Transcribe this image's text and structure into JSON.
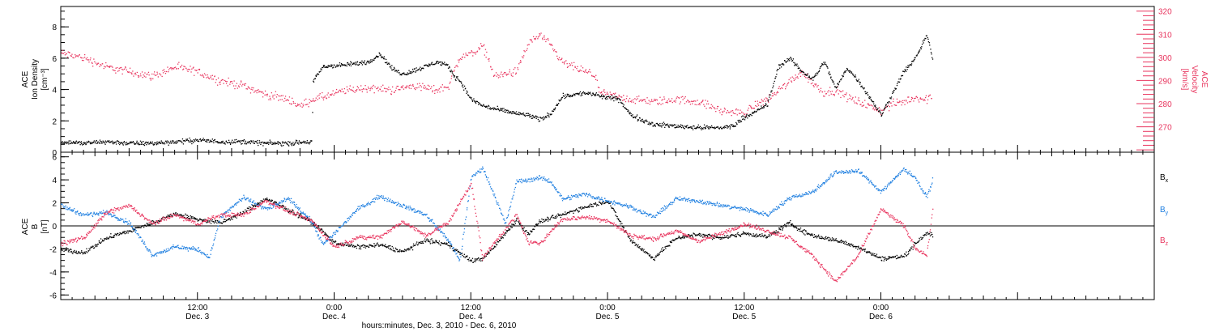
{
  "xaxis": {
    "title": "hours:minutes, Dec.  3, 2010 - Dec.  6, 2010",
    "range_hours": [
      0,
      96
    ],
    "ticks": [
      {
        "hour": 12,
        "time": "12:00",
        "date": "Dec. 3"
      },
      {
        "hour": 24,
        "time": "0:00",
        "date": "Dec. 4"
      },
      {
        "hour": 36,
        "time": "12:00",
        "date": "Dec. 4"
      },
      {
        "hour": 48,
        "time": "0:00",
        "date": "Dec. 5"
      },
      {
        "hour": 60,
        "time": "12:00",
        "date": "Dec. 5"
      },
      {
        "hour": 72,
        "time": "0:00",
        "date": "Dec. 6"
      }
    ]
  },
  "colors": {
    "black": "#000000",
    "pink": "#e8365f",
    "blue": "#1f7fe0"
  },
  "top_panel": {
    "left_label": [
      "ACE",
      "Ion Density"
    ],
    "left_unit": "[cm⁻³]",
    "right_label": [
      "ACE",
      "Velocity"
    ],
    "right_unit": "[km/s]",
    "left_ticks": [
      "0",
      "2",
      "4",
      "6",
      "8"
    ],
    "right_ticks": [
      "270",
      "280",
      "290",
      "300",
      "310",
      "320"
    ]
  },
  "bottom_panel": {
    "left_label": "ACE",
    "left_sublabel": "B",
    "left_unit": "[nT]",
    "left_ticks": [
      "-6",
      "-4",
      "-2",
      "0",
      "2",
      "4",
      "6"
    ],
    "legend": [
      {
        "label": "B",
        "sub": "x",
        "color": "#000000"
      },
      {
        "label": "B",
        "sub": "y",
        "color": "#1f7fe0"
      },
      {
        "label": "B",
        "sub": "z",
        "color": "#e8365f"
      }
    ]
  },
  "chart_data": [
    {
      "type": "scatter",
      "x_unit": "hours since Dec. 3 00:00",
      "xlim": [
        0,
        96
      ],
      "series": [
        {
          "name": "Ion Density",
          "axis": "left",
          "color": "#000000",
          "ylim": [
            0,
            9.3
          ],
          "points": [
            [
              0,
              0.7
            ],
            [
              2,
              0.6
            ],
            [
              4,
              0.7
            ],
            [
              6,
              0.6
            ],
            [
              8,
              0.6
            ],
            [
              10,
              0.7
            ],
            [
              12,
              0.8
            ],
            [
              14,
              0.7
            ],
            [
              16,
              0.7
            ],
            [
              18,
              0.6
            ],
            [
              20,
              0.6
            ],
            [
              22,
              0.7
            ],
            [
              22.1,
              4.5
            ],
            [
              23,
              5.5
            ],
            [
              25,
              5.6
            ],
            [
              27,
              5.8
            ],
            [
              28,
              6.3
            ],
            [
              29,
              5.4
            ],
            [
              30,
              5.0
            ],
            [
              32,
              5.5
            ],
            [
              33,
              5.8
            ],
            [
              34,
              5.5
            ],
            [
              34.5,
              4.9
            ],
            [
              35,
              4.6
            ],
            [
              36,
              3.4
            ],
            [
              37,
              3.0
            ],
            [
              38,
              2.8
            ],
            [
              40,
              2.5
            ],
            [
              41,
              2.4
            ],
            [
              42,
              2.1
            ],
            [
              43,
              2.5
            ],
            [
              44,
              3.6
            ],
            [
              46,
              3.8
            ],
            [
              47,
              3.7
            ],
            [
              47.2,
              3.6
            ],
            [
              49,
              3.4
            ],
            [
              50,
              2.4
            ],
            [
              52,
              1.8
            ],
            [
              54,
              1.7
            ],
            [
              56,
              1.6
            ],
            [
              58,
              1.6
            ],
            [
              59,
              1.7
            ],
            [
              60,
              2.3
            ],
            [
              61,
              2.6
            ],
            [
              62,
              3.1
            ],
            [
              63,
              5.5
            ],
            [
              64,
              6.0
            ],
            [
              65,
              5.2
            ],
            [
              66,
              4.7
            ],
            [
              67,
              5.8
            ],
            [
              68,
              4.1
            ],
            [
              69,
              5.4
            ],
            [
              70,
              4.6
            ],
            [
              71,
              3.5
            ],
            [
              72,
              2.4
            ],
            [
              73,
              3.8
            ],
            [
              74,
              5.2
            ],
            [
              75,
              6.0
            ],
            [
              76,
              7.5
            ],
            [
              76.5,
              6.0
            ]
          ]
        },
        {
          "name": "Velocity",
          "axis": "right",
          "color": "#e8365f",
          "ylim": [
            259,
            322
          ],
          "points": [
            [
              0,
              302
            ],
            [
              2,
              300
            ],
            [
              4,
              296
            ],
            [
              6,
              294
            ],
            [
              8,
              292
            ],
            [
              10,
              296
            ],
            [
              12,
              294
            ],
            [
              14,
              290
            ],
            [
              16,
              288
            ],
            [
              18,
              284
            ],
            [
              20,
              282
            ],
            [
              21,
              279
            ],
            [
              22,
              282
            ],
            [
              23,
              283
            ],
            [
              25,
              286
            ],
            [
              27,
              287
            ],
            [
              29,
              286
            ],
            [
              31,
              288
            ],
            [
              33,
              286
            ],
            [
              34,
              288
            ],
            [
              35,
              300
            ],
            [
              36,
              302
            ],
            [
              37,
              305
            ],
            [
              37.5,
              300
            ],
            [
              38,
              292
            ],
            [
              40,
              294
            ],
            [
              41,
              306
            ],
            [
              42,
              310
            ],
            [
              43,
              305
            ],
            [
              44,
              298
            ],
            [
              46,
              294
            ],
            [
              47,
              292
            ],
            [
              47.2,
              285
            ],
            [
              48,
              284
            ],
            [
              50,
              282
            ],
            [
              52,
              281
            ],
            [
              54,
              282
            ],
            [
              56,
              281
            ],
            [
              57,
              279
            ],
            [
              58,
              277
            ],
            [
              60,
              276
            ],
            [
              61,
              280
            ],
            [
              62,
              282
            ],
            [
              63,
              286
            ],
            [
              64,
              290
            ],
            [
              65,
              294
            ],
            [
              66,
              289
            ],
            [
              67,
              285
            ],
            [
              68,
              286
            ],
            [
              69,
              283
            ],
            [
              70,
              281
            ],
            [
              71,
              279
            ],
            [
              72,
              277
            ],
            [
              73,
              280
            ],
            [
              74,
              281
            ],
            [
              75,
              283
            ],
            [
              76,
              282
            ],
            [
              76.5,
              283
            ]
          ]
        }
      ]
    },
    {
      "type": "scatter",
      "x_unit": "hours since Dec. 3 00:00",
      "xlim": [
        0,
        96
      ],
      "ylim": [
        -6.4,
        6.4
      ],
      "ylabel": "B [nT]",
      "series": [
        {
          "name": "Bx",
          "color": "#000000",
          "points": [
            [
              0,
              -2
            ],
            [
              2,
              -2.3
            ],
            [
              4,
              -1
            ],
            [
              6,
              -0.4
            ],
            [
              8,
              0.3
            ],
            [
              10,
              1.1
            ],
            [
              12,
              0.6
            ],
            [
              14,
              0.3
            ],
            [
              16,
              1.2
            ],
            [
              18,
              2.4
            ],
            [
              20,
              1.4
            ],
            [
              22,
              0.4
            ],
            [
              24,
              -1.4
            ],
            [
              26,
              -1.8
            ],
            [
              28,
              -1.6
            ],
            [
              30,
              -2.2
            ],
            [
              32,
              -1.2
            ],
            [
              34,
              -1.6
            ],
            [
              36,
              -3.0
            ],
            [
              37,
              -2.8
            ],
            [
              38,
              -1.8
            ],
            [
              40,
              0.6
            ],
            [
              41,
              -0.7
            ],
            [
              42,
              0.4
            ],
            [
              44,
              1.0
            ],
            [
              46,
              1.7
            ],
            [
              48,
              2.2
            ],
            [
              50,
              -1.2
            ],
            [
              52,
              -2.8
            ],
            [
              54,
              -1.0
            ],
            [
              56,
              -0.7
            ],
            [
              58,
              -1.0
            ],
            [
              60,
              -0.6
            ],
            [
              62,
              -0.9
            ],
            [
              64,
              0.3
            ],
            [
              65,
              -0.4
            ],
            [
              66,
              -0.8
            ],
            [
              68,
              -1.2
            ],
            [
              70,
              -1.8
            ],
            [
              72,
              -2.8
            ],
            [
              74,
              -2.6
            ],
            [
              75,
              -1.5
            ],
            [
              76,
              -0.5
            ],
            [
              76.5,
              -0.8
            ]
          ]
        },
        {
          "name": "By",
          "color": "#1f7fe0",
          "points": [
            [
              0,
              1.8
            ],
            [
              2,
              1.0
            ],
            [
              4,
              1.2
            ],
            [
              6,
              0.3
            ],
            [
              8,
              -2.5
            ],
            [
              10,
              -1.8
            ],
            [
              12,
              -2.0
            ],
            [
              13,
              -2.7
            ],
            [
              14,
              0.8
            ],
            [
              16,
              2.5
            ],
            [
              18,
              1.5
            ],
            [
              20,
              2.4
            ],
            [
              22,
              0.4
            ],
            [
              23,
              -1.6
            ],
            [
              24,
              -0.6
            ],
            [
              26,
              1.5
            ],
            [
              28,
              2.6
            ],
            [
              30,
              1.8
            ],
            [
              32,
              1.0
            ],
            [
              34,
              -1.2
            ],
            [
              35,
              -3.0
            ],
            [
              36,
              4.2
            ],
            [
              37,
              5.1
            ],
            [
              38,
              2.8
            ],
            [
              39,
              0.2
            ],
            [
              40,
              3.9
            ],
            [
              42,
              4.2
            ],
            [
              43,
              3.9
            ],
            [
              44,
              2.4
            ],
            [
              46,
              2.8
            ],
            [
              48,
              2.2
            ],
            [
              50,
              1.7
            ],
            [
              52,
              0.8
            ],
            [
              54,
              2.4
            ],
            [
              56,
              2.2
            ],
            [
              58,
              1.8
            ],
            [
              60,
              1.5
            ],
            [
              62,
              1.0
            ],
            [
              64,
              2.5
            ],
            [
              66,
              3.0
            ],
            [
              68,
              4.7
            ],
            [
              70,
              4.8
            ],
            [
              72,
              3.0
            ],
            [
              74,
              5.0
            ],
            [
              75,
              4.2
            ],
            [
              76,
              2.5
            ],
            [
              76.5,
              4.0
            ]
          ]
        },
        {
          "name": "Bz",
          "color": "#e8365f",
          "points": [
            [
              0,
              -1.5
            ],
            [
              2,
              -1.0
            ],
            [
              4,
              1.2
            ],
            [
              6,
              1.8
            ],
            [
              8,
              0.2
            ],
            [
              10,
              1.0
            ],
            [
              12,
              0.2
            ],
            [
              14,
              1.0
            ],
            [
              16,
              1.0
            ],
            [
              18,
              2.2
            ],
            [
              20,
              1.3
            ],
            [
              22,
              0.5
            ],
            [
              24,
              -1.8
            ],
            [
              26,
              -1.0
            ],
            [
              28,
              -0.9
            ],
            [
              30,
              0.4
            ],
            [
              32,
              -0.8
            ],
            [
              34,
              0.3
            ],
            [
              36,
              3.8
            ],
            [
              37,
              -2.8
            ],
            [
              38,
              -1.5
            ],
            [
              40,
              1.0
            ],
            [
              41,
              -1.4
            ],
            [
              42,
              -1.5
            ],
            [
              44,
              0.6
            ],
            [
              46,
              0.8
            ],
            [
              48,
              0.5
            ],
            [
              50,
              -0.8
            ],
            [
              52,
              -1.1
            ],
            [
              54,
              -0.4
            ],
            [
              56,
              -1.3
            ],
            [
              58,
              -0.6
            ],
            [
              60,
              0.2
            ],
            [
              62,
              -0.4
            ],
            [
              64,
              -1.0
            ],
            [
              66,
              -2.6
            ],
            [
              68,
              -4.8
            ],
            [
              70,
              -2.5
            ],
            [
              72,
              1.5
            ],
            [
              74,
              0.0
            ],
            [
              75,
              -1.9
            ],
            [
              76,
              -2.5
            ],
            [
              76.5,
              1.4
            ]
          ]
        }
      ]
    }
  ]
}
